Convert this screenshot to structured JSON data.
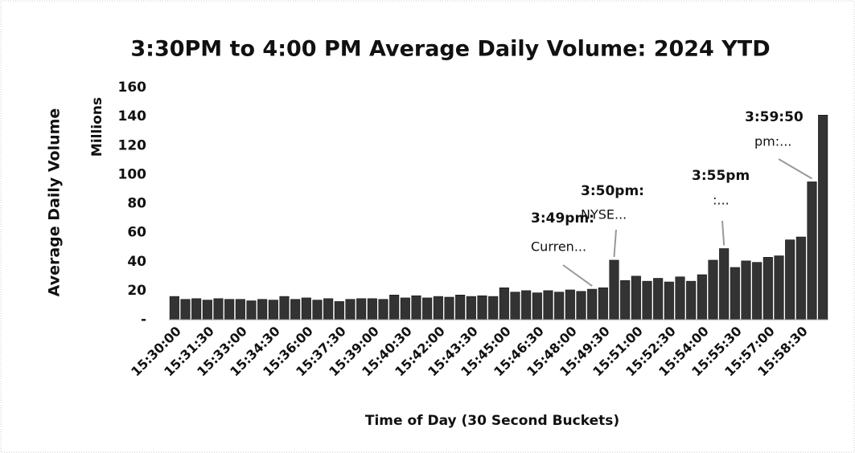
{
  "chart_data": {
    "type": "bar",
    "title": "3:30PM to 4:00 PM Average Daily Volume: 2024 YTD",
    "x_label": "Time of Day (30 Second Buckets)",
    "y_label": "Average Daily Volume",
    "y_unit_label": "Millions",
    "categories": [
      "15:30:00",
      null,
      null,
      "15:31:30",
      null,
      null,
      "15:33:00",
      null,
      null,
      "15:34:30",
      null,
      null,
      "15:36:00",
      null,
      null,
      "15:37:30",
      null,
      null,
      "15:39:00",
      null,
      null,
      "15:40:30",
      null,
      null,
      "15:42:00",
      null,
      null,
      "15:43:30",
      null,
      null,
      "15:45:00",
      null,
      null,
      "15:46:30",
      null,
      null,
      "15:48:00",
      null,
      null,
      "15:49:30",
      null,
      null,
      "15:51:00",
      null,
      null,
      "15:52:30",
      null,
      null,
      "15:54:00",
      null,
      null,
      "15:55:30",
      null,
      null,
      "15:57:00",
      null,
      null,
      "15:58:30",
      null,
      null
    ],
    "values": [
      16,
      14,
      14.5,
      13.5,
      14.5,
      14,
      14,
      13,
      14,
      13.5,
      16,
      14,
      15,
      13.5,
      14.5,
      12.5,
      14,
      14.5,
      14.5,
      14,
      17,
      15,
      16.5,
      15,
      16,
      15.5,
      17,
      16,
      16.5,
      16,
      22,
      19,
      20,
      18.5,
      20,
      19,
      20.5,
      19.5,
      21,
      22,
      41,
      27,
      30,
      26.5,
      28.5,
      26,
      29.5,
      26.5,
      31,
      41,
      49,
      36,
      40.5,
      39.5,
      43,
      44,
      55,
      57,
      95,
      141
    ],
    "color": "#333333",
    "ylim": [
      0,
      160
    ],
    "yticks": [
      {
        "value": 0,
        "label": "-"
      },
      20,
      40,
      60,
      80,
      100,
      120,
      140,
      160
    ],
    "annotations": [
      {
        "label": "3:49pm:",
        "text": "Curren..."
      },
      {
        "label": "3:50pm:",
        "text": "NYSE..."
      },
      {
        "label": "3:55pm",
        "text": ":..."
      },
      {
        "label": "3:59:50",
        "text": "pm:..."
      }
    ]
  }
}
